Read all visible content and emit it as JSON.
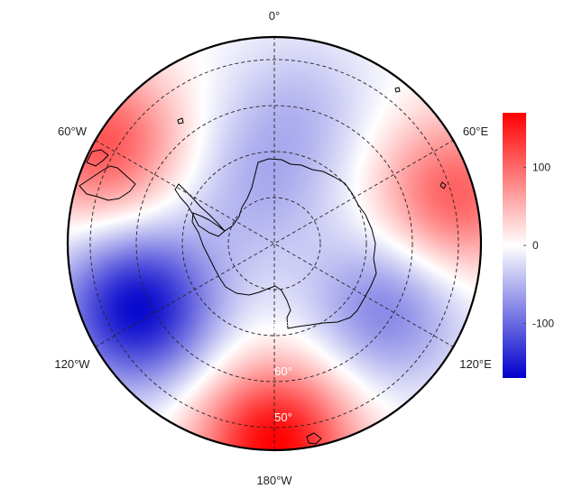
{
  "chart_data": {
    "type": "heatmap",
    "projection": "south-polar-stereographic",
    "title": "",
    "field_label": "",
    "color_range": [
      -170,
      170
    ],
    "colormap": [
      "#0000cc",
      "#ffffff",
      "#ff0000"
    ],
    "colorbar": {
      "ticks": [
        {
          "value": 100,
          "label": "100"
        },
        {
          "value": 0,
          "label": "0"
        },
        {
          "value": -100,
          "label": "-100"
        }
      ]
    },
    "lon_labels": {
      "top": "0°",
      "upper_left": "60°W",
      "upper_right": "60°E",
      "lower_left": "120°W",
      "lower_right": "120°E",
      "bottom": "180°W"
    },
    "lat_labels": [
      {
        "lat": -70,
        "label": "70°"
      },
      {
        "lat": -60,
        "label": "60°"
      },
      {
        "lat": -50,
        "label": "50°"
      }
    ],
    "anomaly_centers": [
      {
        "lon": -115,
        "lat": -57,
        "value": -165
      },
      {
        "lon": 180,
        "lat": -47,
        "value": 170
      },
      {
        "lon": -60,
        "lat": -47,
        "value": 115
      },
      {
        "lon": 75,
        "lat": -50,
        "value": 110
      },
      {
        "lon": 120,
        "lat": -62,
        "value": -85
      },
      {
        "lon": 10,
        "lat": -60,
        "value": -40
      },
      {
        "lon": -20,
        "lat": -78,
        "value": -45
      }
    ]
  }
}
